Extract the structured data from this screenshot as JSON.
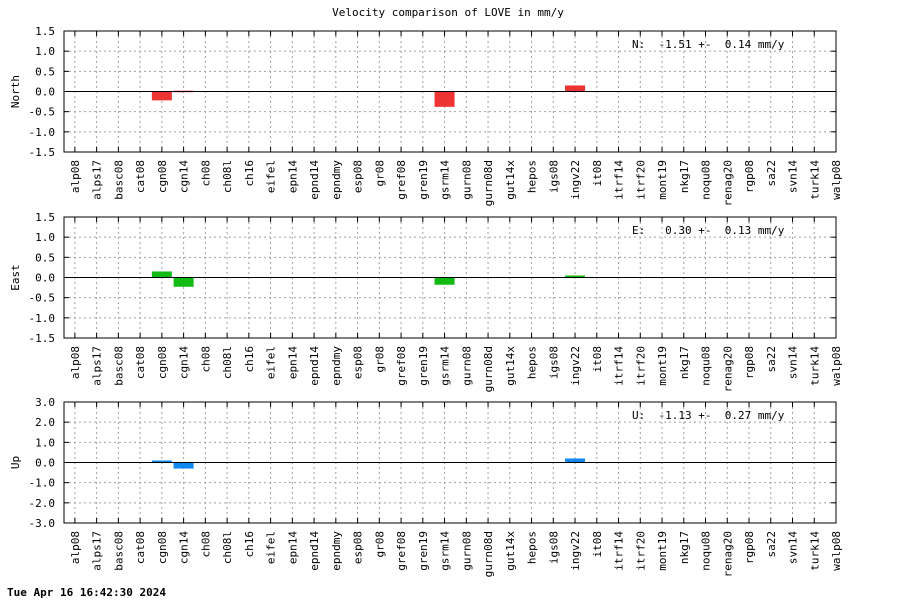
{
  "title": "Velocity comparison of LOVE in mm/y",
  "timestamp": "Tue Apr 16 16:42:30 2024",
  "chart_data": [
    {
      "type": "bar",
      "ylabel": "North",
      "ylim": [
        -1.5,
        1.5
      ],
      "yticks": [
        -1.5,
        -1.0,
        -0.5,
        0.0,
        0.5,
        1.0,
        1.5
      ],
      "color": "#ee3333",
      "annotation": "N:  -1.51 +-  0.14 mm/y",
      "grid": true,
      "categories": [
        "alp08",
        "alps17",
        "basc08",
        "cat08",
        "cgn08",
        "cgn14",
        "ch08",
        "ch08l",
        "ch16",
        "eifel",
        "epn14",
        "epnd14",
        "epndmy",
        "esp08",
        "gr08",
        "gref08",
        "gren19",
        "gsrm14",
        "gurn08",
        "gurn08d",
        "gut14x",
        "hepos",
        "igs08",
        "ingv22",
        "it08",
        "itrf14",
        "itrf20",
        "mont19",
        "nkg17",
        "noqu08",
        "renag20",
        "rgp08",
        "sa22",
        "svn14",
        "turk14",
        "walp08"
      ],
      "values": [
        0,
        0,
        0,
        0,
        -0.22,
        0.02,
        0,
        0,
        0,
        0,
        0,
        0,
        0,
        0,
        0,
        0,
        0,
        -0.38,
        0,
        0,
        0,
        0,
        0,
        0.15,
        0,
        0,
        0,
        0,
        0,
        0,
        0,
        0,
        0,
        0,
        0,
        0
      ]
    },
    {
      "type": "bar",
      "ylabel": "East",
      "ylim": [
        -1.5,
        1.5
      ],
      "yticks": [
        -1.5,
        -1.0,
        -0.5,
        0.0,
        0.5,
        1.0,
        1.5
      ],
      "color": "#11bb11",
      "annotation": "E:   0.30 +-  0.13 mm/y",
      "grid": true,
      "categories": [
        "alp08",
        "alps17",
        "basc08",
        "cat08",
        "cgn08",
        "cgn14",
        "ch08",
        "ch08l",
        "ch16",
        "eifel",
        "epn14",
        "epnd14",
        "epndmy",
        "esp08",
        "gr08",
        "gref08",
        "gren19",
        "gsrm14",
        "gurn08",
        "gurn08d",
        "gut14x",
        "hepos",
        "igs08",
        "ingv22",
        "it08",
        "itrf14",
        "itrf20",
        "mont19",
        "nkg17",
        "noqu08",
        "renag20",
        "rgp08",
        "sa22",
        "svn14",
        "turk14",
        "walp08"
      ],
      "values": [
        0,
        0,
        0,
        0,
        0.15,
        -0.23,
        0,
        0,
        0,
        0,
        0,
        0,
        0,
        0,
        0,
        0,
        0,
        -0.18,
        0,
        0,
        0,
        0,
        0,
        0.05,
        0,
        0,
        0,
        0,
        0,
        0,
        0,
        0,
        0,
        0,
        0,
        0
      ]
    },
    {
      "type": "bar",
      "ylabel": "Up",
      "ylim": [
        -3.0,
        3.0
      ],
      "yticks": [
        -3.0,
        -2.0,
        -1.0,
        0.0,
        1.0,
        2.0,
        3.0
      ],
      "color": "#1188ee",
      "annotation": "U:  -1.13 +-  0.27 mm/y",
      "grid": true,
      "categories": [
        "alp08",
        "alps17",
        "basc08",
        "cat08",
        "cgn08",
        "cgn14",
        "ch08",
        "ch08l",
        "ch16",
        "eifel",
        "epn14",
        "epnd14",
        "epndmy",
        "esp08",
        "gr08",
        "gref08",
        "gren19",
        "gsrm14",
        "gurn08",
        "gurn08d",
        "gut14x",
        "hepos",
        "igs08",
        "ingv22",
        "it08",
        "itrf14",
        "itrf20",
        "mont19",
        "nkg17",
        "noqu08",
        "renag20",
        "rgp08",
        "sa22",
        "svn14",
        "turk14",
        "walp08"
      ],
      "values": [
        0,
        0,
        0,
        0,
        0.1,
        -0.3,
        0,
        0,
        0,
        0,
        0,
        0,
        0,
        0,
        0,
        0,
        0,
        0,
        0,
        0,
        0,
        0,
        0,
        0.2,
        0,
        0,
        0,
        0,
        0,
        0,
        0,
        0,
        0,
        0,
        0,
        0
      ]
    }
  ]
}
